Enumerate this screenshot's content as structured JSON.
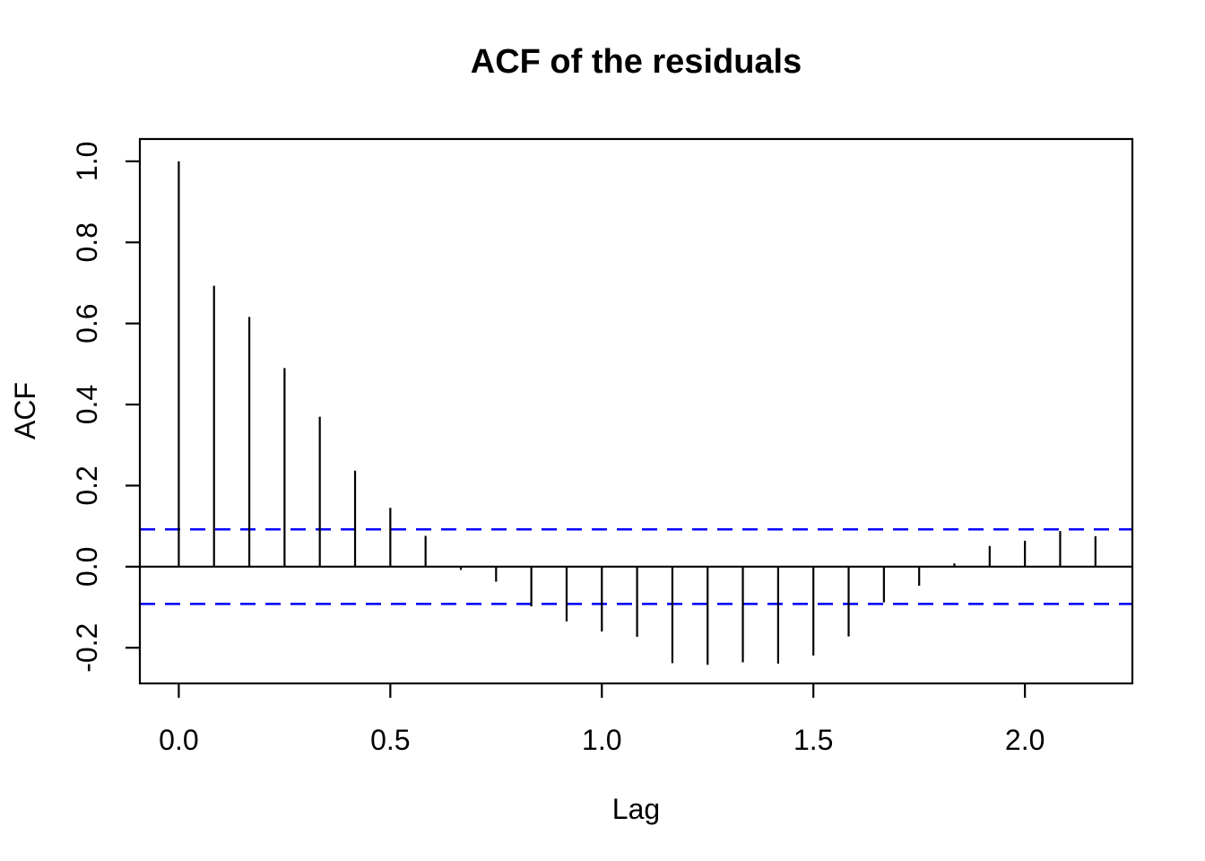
{
  "figure": {
    "background": "#FFFFFF"
  },
  "chart_data": {
    "type": "bar",
    "subtype": "acf-stem-plot",
    "title": "ACF of the residuals",
    "xlabel": "Lag",
    "ylabel": "ACF",
    "x": [
      0.0,
      0.0833,
      0.1667,
      0.25,
      0.3333,
      0.4167,
      0.5,
      0.5833,
      0.6667,
      0.75,
      0.8333,
      0.9167,
      1.0,
      1.0833,
      1.1667,
      1.25,
      1.3333,
      1.4167,
      1.5,
      1.5833,
      1.6667,
      1.75,
      1.8333,
      1.9167,
      2.0,
      2.0833,
      2.1667
    ],
    "values": [
      1.0,
      0.693,
      0.616,
      0.49,
      0.37,
      0.237,
      0.145,
      0.076,
      -0.008,
      -0.037,
      -0.098,
      -0.135,
      -0.16,
      -0.173,
      -0.238,
      -0.242,
      -0.236,
      -0.239,
      -0.219,
      -0.172,
      -0.088,
      -0.047,
      0.008,
      0.051,
      0.064,
      0.088,
      0.075
    ],
    "confidence_bounds": {
      "upper": 0.092,
      "lower": -0.092,
      "line_style": "dashed",
      "color": "#0000FF"
    },
    "zero_line": true,
    "grid": false,
    "legend": null,
    "xlim": [
      -0.092,
      2.254
    ],
    "ylim": [
      -0.288,
      1.055
    ],
    "xticks": {
      "values": [
        0.0,
        0.5,
        1.0,
        1.5,
        2.0
      ],
      "labels": [
        "0.0",
        "0.5",
        "1.0",
        "1.5",
        "2.0"
      ]
    },
    "yticks": {
      "values": [
        -0.2,
        0.0,
        0.2,
        0.4,
        0.6,
        0.8,
        1.0
      ],
      "labels": [
        "-0.2",
        "0.0",
        "0.2",
        "0.4",
        "0.6",
        "0.8",
        "1.0"
      ],
      "label_rotation_deg": -90
    },
    "colors": {
      "spike": "#000000",
      "axis": "#000000",
      "tick_label": "#000000",
      "confidence": "#0000FF",
      "background": "#FFFFFF"
    }
  }
}
